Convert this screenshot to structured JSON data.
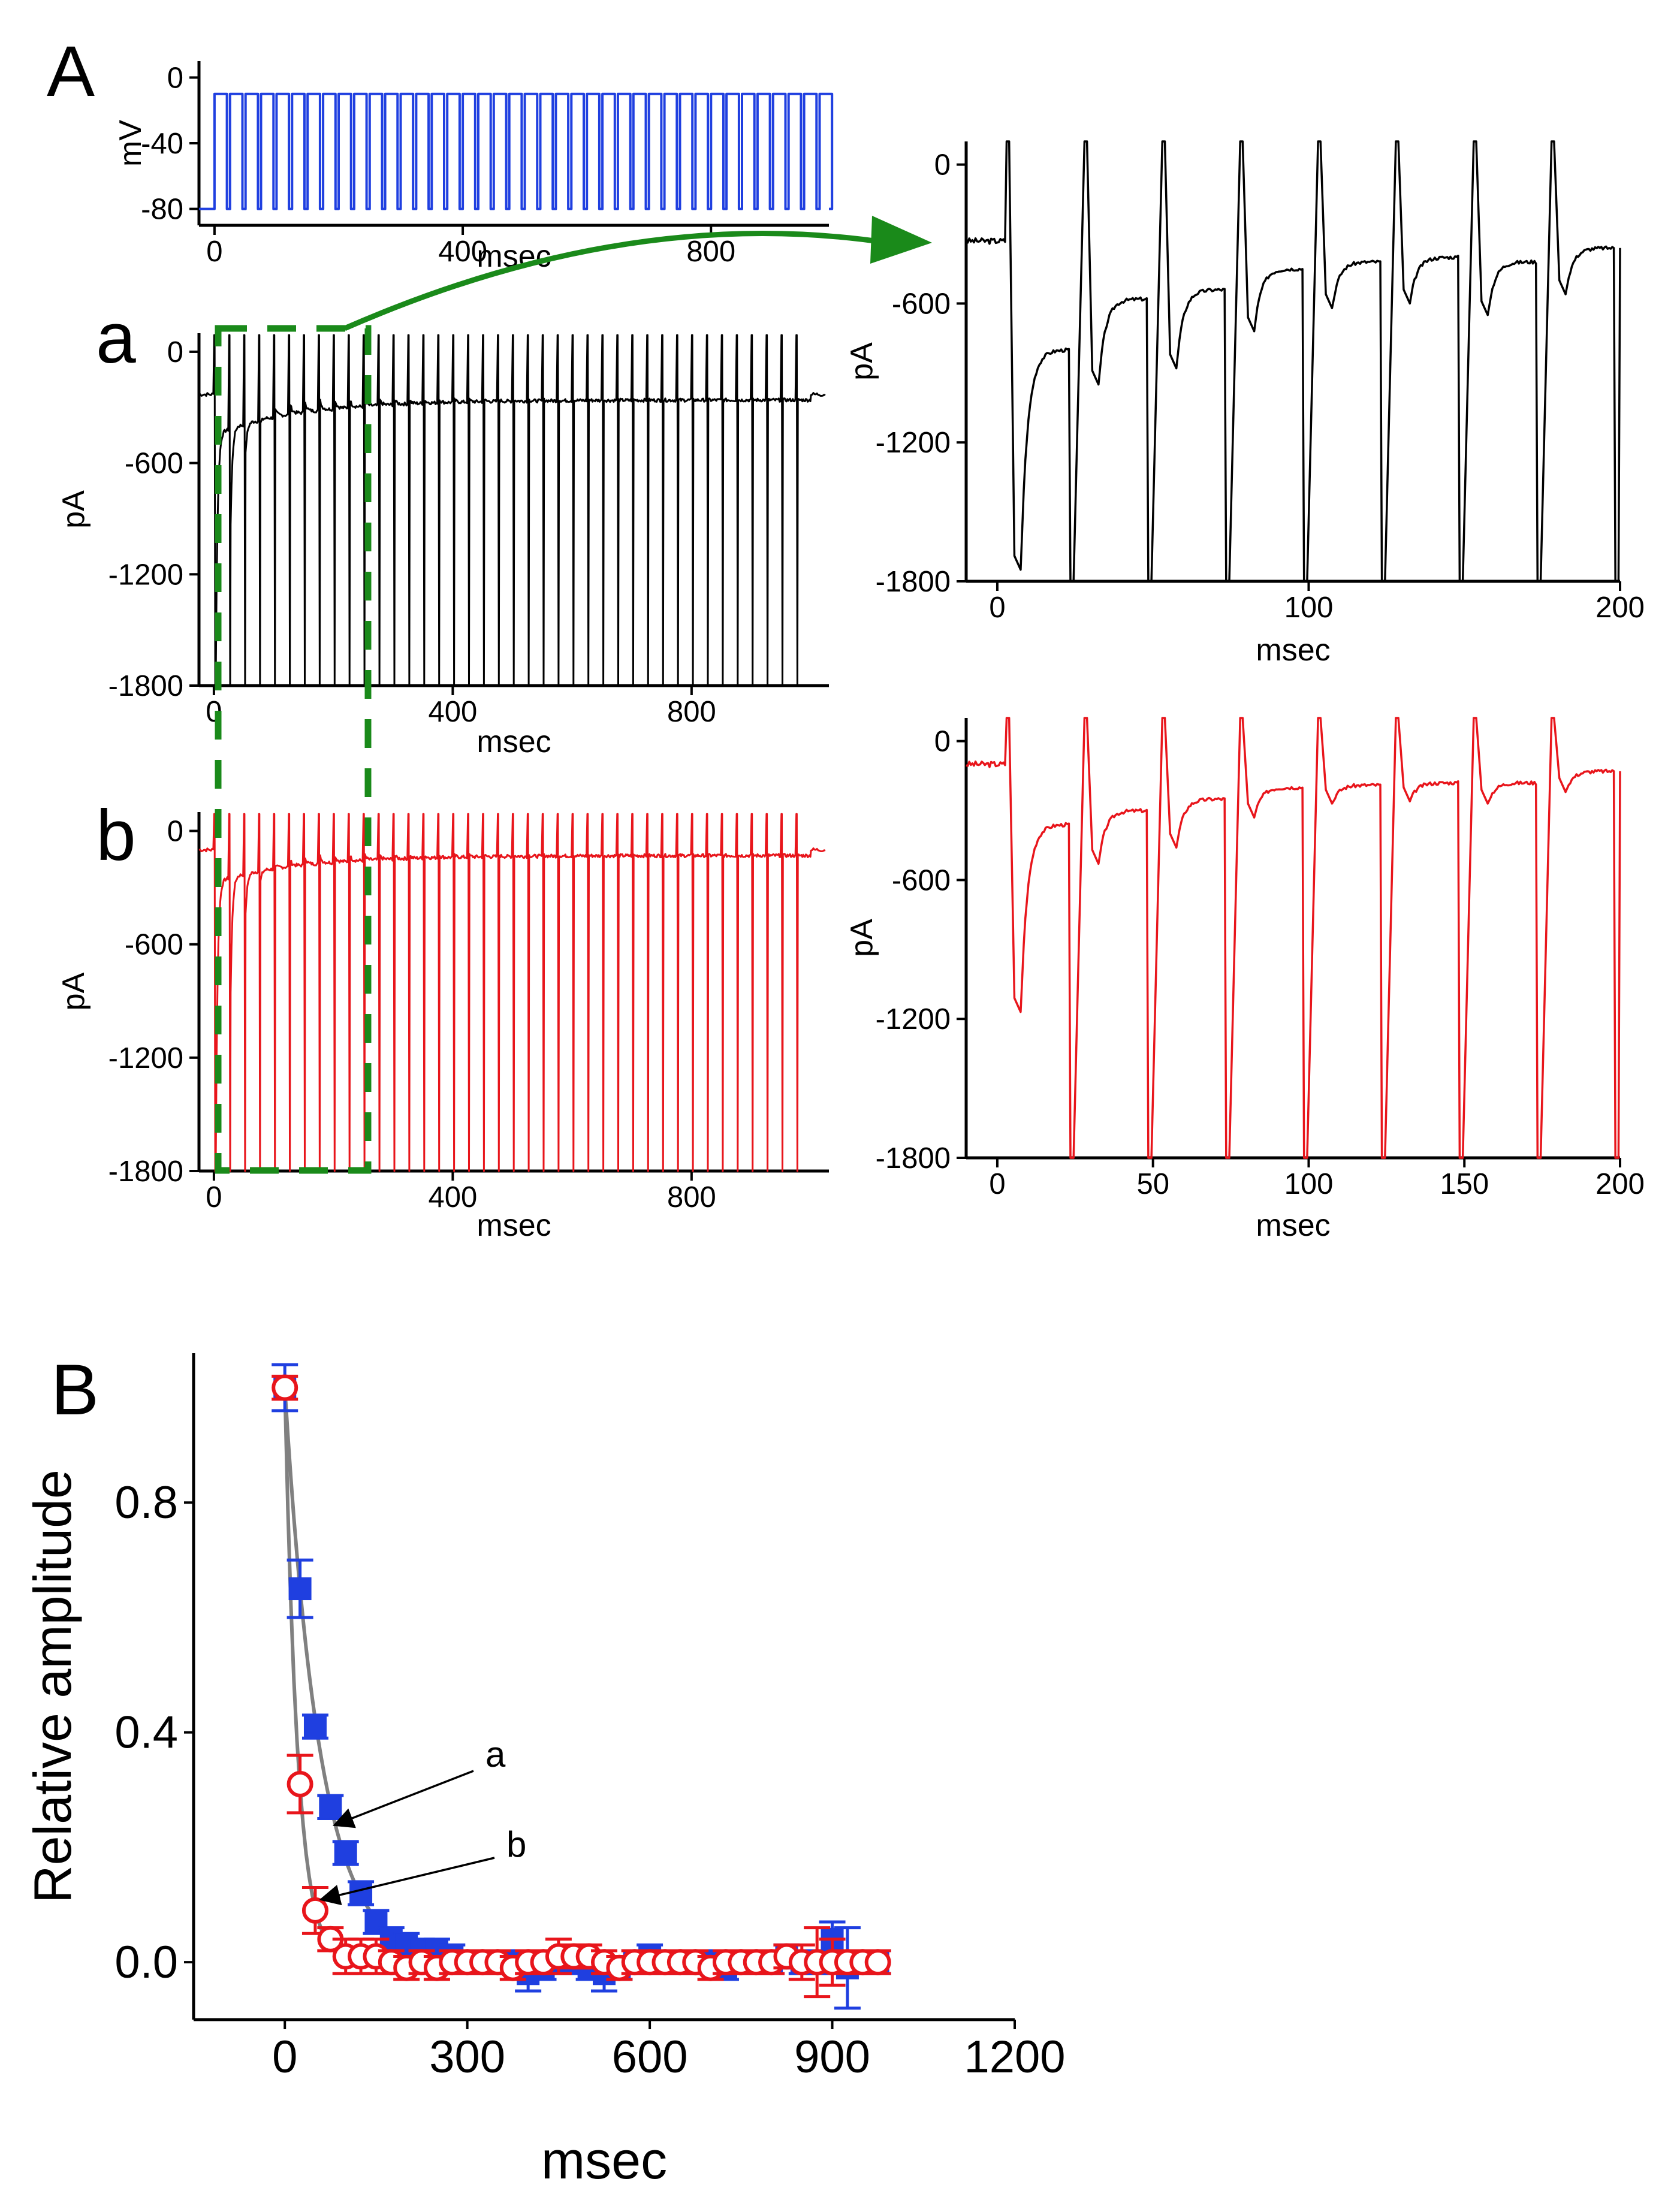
{
  "labels": {
    "panel_A": "A",
    "panel_B": "B",
    "trace_a": "a",
    "trace_b": "b"
  },
  "colors": {
    "black": "#000000",
    "red": "#e8151b",
    "blue": "#1f3fe0",
    "green": "#1a8a1a",
    "gray": "#808080"
  },
  "chart_data": [
    {
      "id": "voltage",
      "type": "line",
      "title": "",
      "xlabel": "msec",
      "ylabel": "mV",
      "xlim": [
        -25,
        990
      ],
      "ylim": [
        -90,
        10
      ],
      "xticks": [
        0,
        400,
        800
      ],
      "yticks": [
        0,
        -40,
        -80
      ],
      "color": "blue",
      "waveform": "step pulses from -80 mV to -10 mV, 40 pulses at 40 Hz (25 ms period) from 0 to 1000 ms"
    },
    {
      "id": "a-full",
      "type": "line",
      "xlabel": "msec",
      "ylabel": "pA",
      "xlim": [
        -25,
        1030
      ],
      "ylim": [
        -1800,
        100
      ],
      "xticks": [
        0,
        400,
        800
      ],
      "yticks": [
        0,
        -600,
        -1200,
        -1800
      ],
      "color": "black",
      "baseline_pA": -230,
      "first_peak_pA": -1800,
      "steady_state_pA": -250
    },
    {
      "id": "b-full",
      "type": "line",
      "xlabel": "msec",
      "ylabel": "pA",
      "xlim": [
        -25,
        1030
      ],
      "ylim": [
        -1800,
        100
      ],
      "xticks": [
        0,
        400,
        800
      ],
      "yticks": [
        0,
        -600,
        -1200,
        -1800
      ],
      "color": "red",
      "baseline_pA": -100,
      "first_peak_pA": -1200,
      "steady_state_pA": -120
    },
    {
      "id": "a-zoom",
      "type": "line",
      "xlabel": "msec",
      "ylabel": "pA",
      "xlim": [
        -10,
        200
      ],
      "ylim": [
        -1800,
        100
      ],
      "xticks": [
        0,
        100,
        200
      ],
      "yticks": [
        0,
        -600,
        -1200,
        -1800
      ],
      "color": "black",
      "peaks_pA": [
        -1750,
        -950,
        -880,
        -720,
        -620,
        -600,
        -650,
        -560
      ],
      "tails_pA": [
        -800,
        -580,
        -540,
        -450,
        -420,
        -400,
        -420,
        -360
      ]
    },
    {
      "id": "b-zoom",
      "type": "line",
      "xlabel": "msec",
      "ylabel": "pA",
      "xlim": [
        -10,
        200
      ],
      "ylim": [
        -1800,
        100
      ],
      "xticks": [
        0,
        50,
        100,
        150,
        200
      ],
      "yticks": [
        0,
        -600,
        -1200,
        -1800
      ],
      "color": "red",
      "peaks_pA": [
        -1170,
        -530,
        -460,
        -330,
        -270,
        -260,
        -270,
        -220
      ],
      "tails_pA": [
        -360,
        -300,
        -250,
        -200,
        -190,
        -180,
        -180,
        -130
      ]
    },
    {
      "id": "relative-amplitude",
      "type": "scatter",
      "xlabel": "msec",
      "ylabel": "Relative amplitude",
      "xlim": [
        -150,
        1200
      ],
      "ylim": [
        -0.1,
        1.06
      ],
      "xticks": [
        0,
        300,
        600,
        900,
        1200
      ],
      "yticks": [
        0.0,
        0.4,
        0.8
      ],
      "series": [
        {
          "name": "a",
          "marker": "filled-square",
          "color": "blue",
          "x": [
            0,
            25,
            50,
            75,
            100,
            125,
            150,
            175,
            200,
            225,
            250,
            275,
            300,
            325,
            350,
            375,
            400,
            425,
            450,
            475,
            500,
            525,
            550,
            575,
            600,
            625,
            650,
            675,
            700,
            725,
            750,
            775,
            800,
            825,
            850,
            875,
            900,
            925,
            950,
            975
          ],
          "y": [
            1.0,
            0.65,
            0.41,
            0.27,
            0.19,
            0.12,
            0.07,
            0.04,
            0.03,
            0.02,
            0.02,
            0.01,
            0.0,
            0.0,
            0.0,
            0.0,
            -0.02,
            -0.01,
            0.0,
            0.0,
            -0.01,
            -0.02,
            -0.01,
            0.0,
            0.01,
            0.0,
            0.0,
            0.0,
            0.0,
            -0.01,
            0.0,
            0.0,
            0.0,
            0.01,
            0.0,
            0.0,
            0.04,
            -0.01,
            0.0,
            0.0
          ],
          "err": [
            0.04,
            0.05,
            0.02,
            0.02,
            0.02,
            0.02,
            0.02,
            0.02,
            0.02,
            0.02,
            0.02,
            0.02,
            0.02,
            0.02,
            0.02,
            0.02,
            0.03,
            0.02,
            0.02,
            0.02,
            0.02,
            0.03,
            0.02,
            0.02,
            0.02,
            0.02,
            0.02,
            0.02,
            0.02,
            0.02,
            0.02,
            0.02,
            0.02,
            0.02,
            0.02,
            0.02,
            0.03,
            0.07,
            0.02,
            0.02
          ]
        },
        {
          "name": "b",
          "marker": "open-circle",
          "color": "red",
          "x": [
            0,
            25,
            50,
            75,
            100,
            125,
            150,
            175,
            200,
            225,
            250,
            275,
            300,
            325,
            350,
            375,
            400,
            425,
            450,
            475,
            500,
            525,
            550,
            575,
            600,
            625,
            650,
            675,
            700,
            725,
            750,
            775,
            800,
            825,
            850,
            875,
            900,
            925,
            950,
            975
          ],
          "y": [
            1.0,
            0.31,
            0.09,
            0.04,
            0.01,
            0.01,
            0.01,
            0.0,
            -0.01,
            0.0,
            -0.01,
            0.0,
            0.0,
            0.0,
            0.0,
            -0.01,
            0.0,
            0.0,
            0.01,
            0.01,
            0.01,
            0.0,
            -0.01,
            0.0,
            0.0,
            0.0,
            0.0,
            0.0,
            -0.01,
            0.0,
            0.0,
            0.0,
            0.0,
            0.01,
            0.0,
            0.0,
            0.0,
            0.0,
            0.0,
            0.0
          ],
          "err": [
            0.02,
            0.05,
            0.04,
            0.02,
            0.03,
            0.03,
            0.03,
            0.02,
            0.02,
            0.02,
            0.02,
            0.02,
            0.02,
            0.02,
            0.02,
            0.02,
            0.02,
            0.02,
            0.03,
            0.02,
            0.02,
            0.02,
            0.02,
            0.02,
            0.02,
            0.02,
            0.02,
            0.02,
            0.02,
            0.02,
            0.02,
            0.02,
            0.02,
            0.02,
            0.03,
            0.06,
            0.04,
            0.02,
            0.02,
            0.02
          ]
        }
      ]
    }
  ]
}
